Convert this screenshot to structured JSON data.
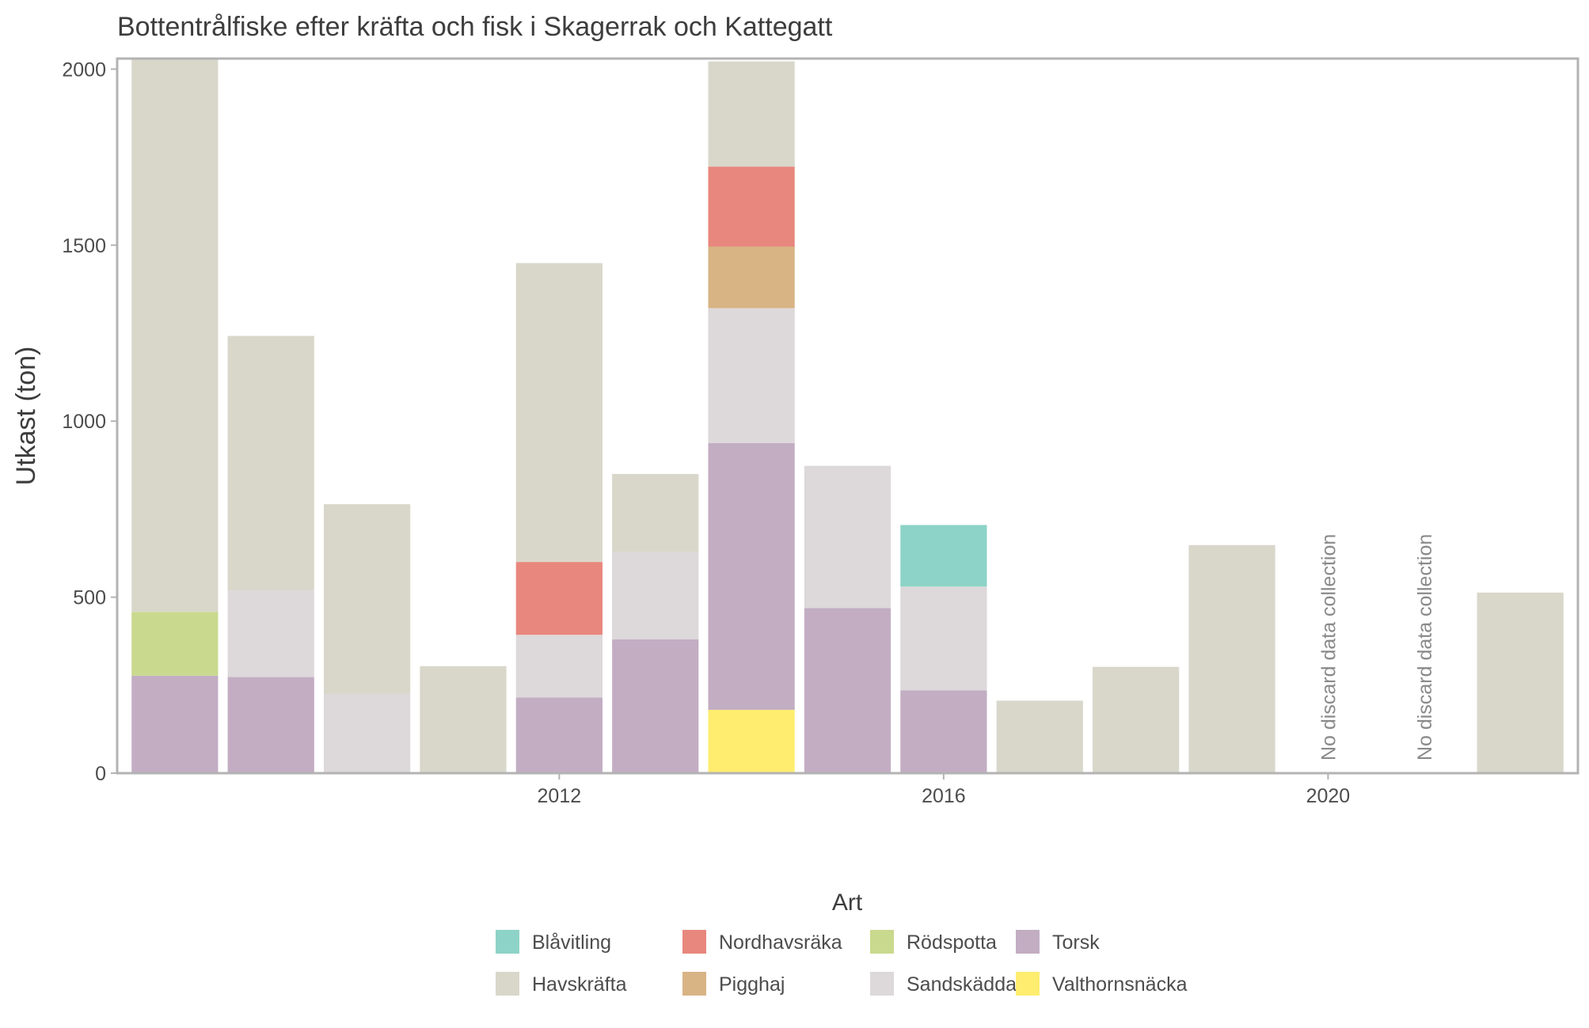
{
  "chart_data": {
    "type": "bar",
    "stacked": true,
    "title": "Bottentrålfiske efter kräfta och fisk i Skagerrak och Kattegatt",
    "xlabel": "",
    "ylabel": "Utkast (ton)",
    "ylim": [
      0,
      2030
    ],
    "xlim": [
      2007.4,
      2022.6
    ],
    "x_ticks": [
      2012,
      2016,
      2020
    ],
    "y_ticks": [
      0,
      500,
      1000,
      1500,
      2000
    ],
    "grid": false,
    "legend": {
      "title": "Art",
      "position": "bottom"
    },
    "x": [
      2008,
      2009,
      2010,
      2011,
      2012,
      2013,
      2014,
      2015,
      2016,
      2017,
      2018,
      2019,
      2020,
      2021,
      2022
    ],
    "series": [
      {
        "name": "Valthornsnäcka",
        "color": "#ffed6f",
        "values": [
          0,
          0,
          0,
          0,
          0,
          0,
          180,
          0,
          0,
          0,
          0,
          0,
          0,
          0,
          0
        ]
      },
      {
        "name": "Torsk",
        "color": "#c2adc3",
        "values": [
          277,
          273,
          0,
          0,
          215,
          380,
          758,
          469,
          235,
          0,
          0,
          0,
          0,
          0,
          0
        ]
      },
      {
        "name": "Sandskädda",
        "color": "#ddd8da",
        "values": [
          0,
          246,
          225,
          0,
          178,
          248,
          383,
          404,
          295,
          0,
          0,
          0,
          0,
          0,
          0
        ]
      },
      {
        "name": "Rödspotta",
        "color": "#c9d98d",
        "values": [
          181,
          0,
          0,
          0,
          0,
          0,
          0,
          0,
          0,
          0,
          0,
          0,
          0,
          0,
          0
        ]
      },
      {
        "name": "Pigghaj",
        "color": "#d8b384",
        "values": [
          0,
          0,
          0,
          0,
          0,
          0,
          175,
          0,
          0,
          0,
          0,
          0,
          0,
          0,
          0
        ]
      },
      {
        "name": "Nordhavsräka",
        "color": "#e8877d",
        "values": [
          0,
          0,
          0,
          0,
          207,
          0,
          227,
          0,
          0,
          0,
          0,
          0,
          0,
          0,
          0
        ]
      },
      {
        "name": "Blåvitling",
        "color": "#8dd3c7",
        "values": [
          0,
          0,
          0,
          0,
          0,
          0,
          0,
          0,
          175,
          0,
          0,
          0,
          0,
          0,
          0
        ]
      },
      {
        "name": "Havskräfta",
        "color": "#d9d7ca",
        "values": [
          1572,
          723,
          539,
          304,
          849,
          222,
          299,
          0,
          0,
          206,
          302,
          648,
          0,
          0,
          513
        ]
      }
    ],
    "legend_order": [
      "Blåvitling",
      "Havskräfta",
      "Nordhavsräka",
      "Pigghaj",
      "Rödspotta",
      "Sandskädda",
      "Torsk",
      "Valthornsnäcka"
    ],
    "annotations": [
      {
        "x": 2020,
        "text": "No discard data collection"
      },
      {
        "x": 2021,
        "text": "No discard data collection"
      }
    ]
  }
}
